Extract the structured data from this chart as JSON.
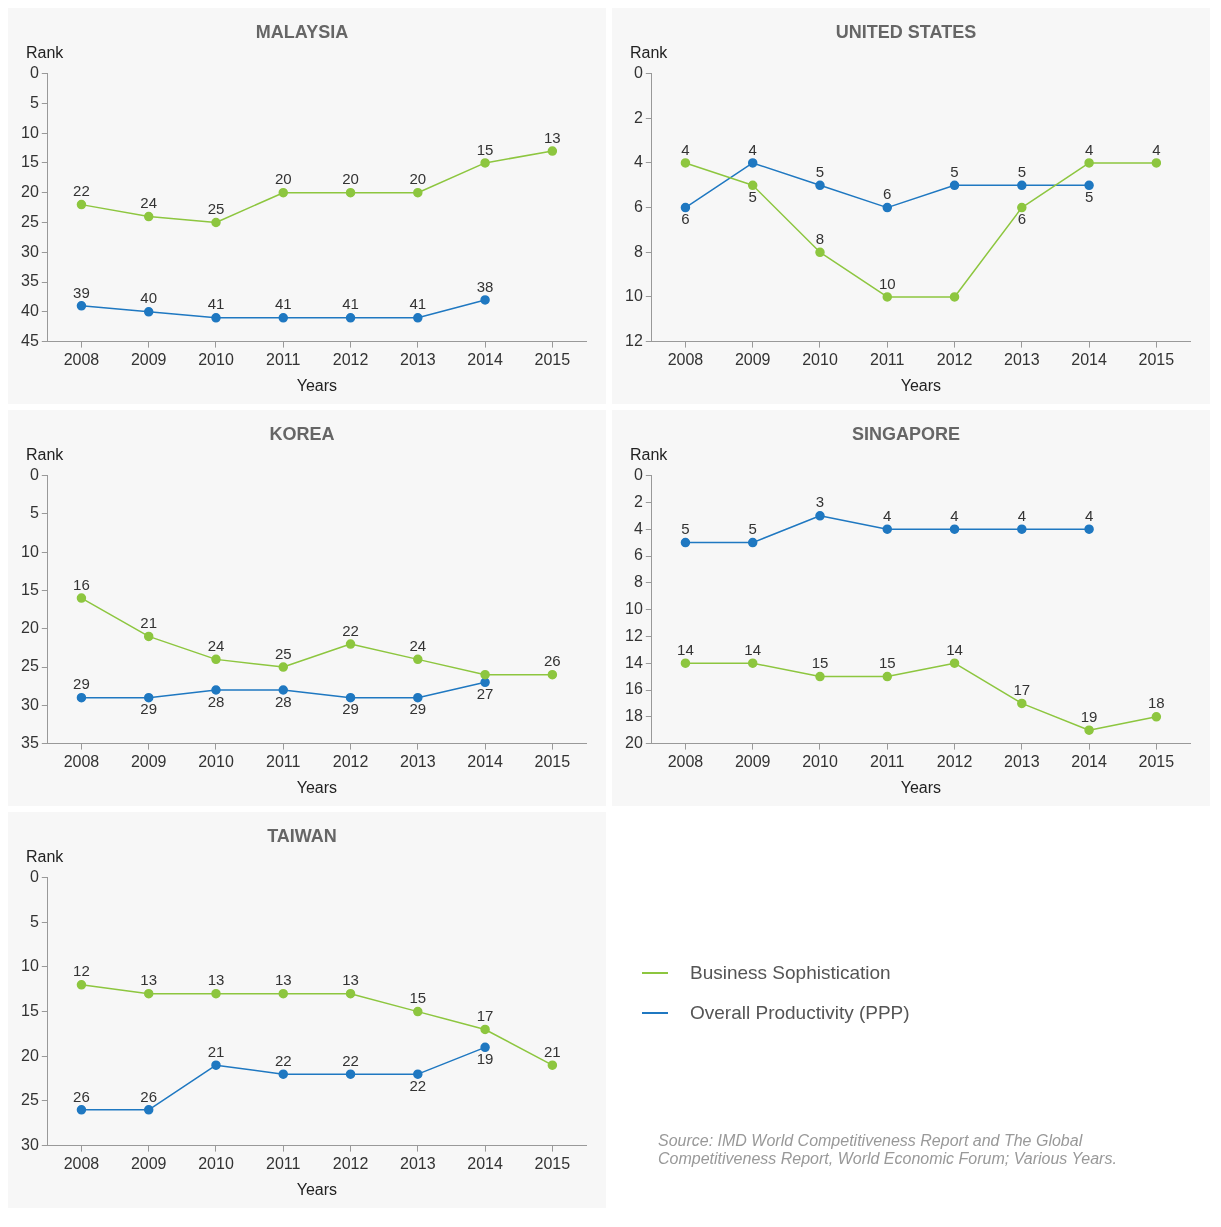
{
  "chart_data": [
    {
      "type": "line",
      "title": "MALAYSIA",
      "xlabel": "Years",
      "ylabel": "Rank",
      "categories": [
        "2008",
        "2009",
        "2010",
        "2011",
        "2012",
        "2013",
        "2014",
        "2015"
      ],
      "ylim": [
        45,
        0
      ],
      "yticks": [
        0,
        5,
        10,
        15,
        20,
        25,
        30,
        35,
        40,
        45
      ],
      "marker": "circle",
      "data_labels": true,
      "legend": "right",
      "series": [
        {
          "name": "Business Sophistication",
          "color": "#8dc63f",
          "values": [
            22,
            24,
            25,
            20,
            20,
            20,
            15,
            13
          ]
        },
        {
          "name": "Overall Productivity (PPP)",
          "color": "#1f78c1",
          "values": [
            39,
            40,
            41,
            41,
            41,
            41,
            38,
            null
          ]
        }
      ]
    },
    {
      "type": "line",
      "title": "UNITED STATES",
      "xlabel": "Years",
      "ylabel": "Rank",
      "categories": [
        "2008",
        "2009",
        "2010",
        "2011",
        "2012",
        "2013",
        "2014",
        "2015"
      ],
      "ylim": [
        12,
        0
      ],
      "yticks": [
        0,
        2,
        4,
        6,
        8,
        10,
        12
      ],
      "marker": "circle",
      "series": [
        {
          "color": "#8dc63f",
          "values": [
            4,
            5,
            8,
            10,
            10,
            6,
            4,
            4
          ],
          "value_labels": [
            "4",
            "5",
            "8",
            "10",
            null,
            "6",
            "4",
            "4"
          ]
        },
        {
          "color": "#1f78c1",
          "values": [
            6,
            4,
            5,
            6,
            5,
            5,
            5,
            null
          ],
          "value_labels": [
            "6",
            "4",
            "5",
            "6",
            "5",
            "5",
            "5",
            null
          ]
        }
      ]
    },
    {
      "type": "line",
      "title": "KOREA",
      "xlabel": "Years",
      "ylabel": "Rank",
      "categories": [
        "2008",
        "2009",
        "2010",
        "2011",
        "2012",
        "2013",
        "2014",
        "2015"
      ],
      "ylim": [
        35,
        0
      ],
      "yticks": [
        0,
        5,
        10,
        15,
        20,
        25,
        30,
        35
      ],
      "marker": "circle",
      "series": [
        {
          "color": "#8dc63f",
          "values": [
            16,
            21,
            24,
            25,
            22,
            24,
            26,
            26
          ],
          "value_labels": [
            "16",
            "21",
            "24",
            "25",
            "22",
            "24",
            null,
            "26"
          ]
        },
        {
          "color": "#1f78c1",
          "values": [
            29,
            29,
            28,
            28,
            29,
            29,
            27,
            null
          ],
          "value_labels": [
            "29",
            "29",
            "28",
            "28",
            "29",
            "29",
            "27",
            null
          ]
        }
      ]
    },
    {
      "type": "line",
      "title": "SINGAPORE",
      "xlabel": "Years",
      "ylabel": "Rank",
      "categories": [
        "2008",
        "2009",
        "2010",
        "2011",
        "2012",
        "2013",
        "2014",
        "2015"
      ],
      "ylim": [
        20,
        0
      ],
      "yticks": [
        0,
        2,
        4,
        6,
        8,
        10,
        12,
        14,
        16,
        18,
        20
      ],
      "marker": "circle",
      "data_labels": true,
      "series": [
        {
          "color": "#8dc63f",
          "values": [
            14,
            14,
            15,
            15,
            14,
            17,
            19,
            18
          ]
        },
        {
          "color": "#1f78c1",
          "values": [
            5,
            5,
            3,
            4,
            4,
            4,
            4,
            null
          ]
        }
      ]
    },
    {
      "type": "line",
      "title": "TAIWAN",
      "xlabel": "Years",
      "ylabel": "Rank",
      "categories": [
        "2008",
        "2009",
        "2010",
        "2011",
        "2012",
        "2013",
        "2014",
        "2015"
      ],
      "ylim": [
        30,
        0
      ],
      "yticks": [
        0,
        5,
        10,
        15,
        20,
        25,
        30
      ],
      "marker": "circle",
      "data_labels": true,
      "annotations": [
        "Source: IMD World Competitiveness Report and The Global Competitiveness Report, World Economic Forum; Various Years."
      ],
      "series": [
        {
          "color": "#8dc63f",
          "values": [
            12,
            13,
            13,
            13,
            13,
            15,
            17,
            21
          ]
        },
        {
          "color": "#1f78c1",
          "values": [
            26,
            26,
            21,
            22,
            22,
            22,
            19,
            null
          ]
        }
      ]
    }
  ]
}
